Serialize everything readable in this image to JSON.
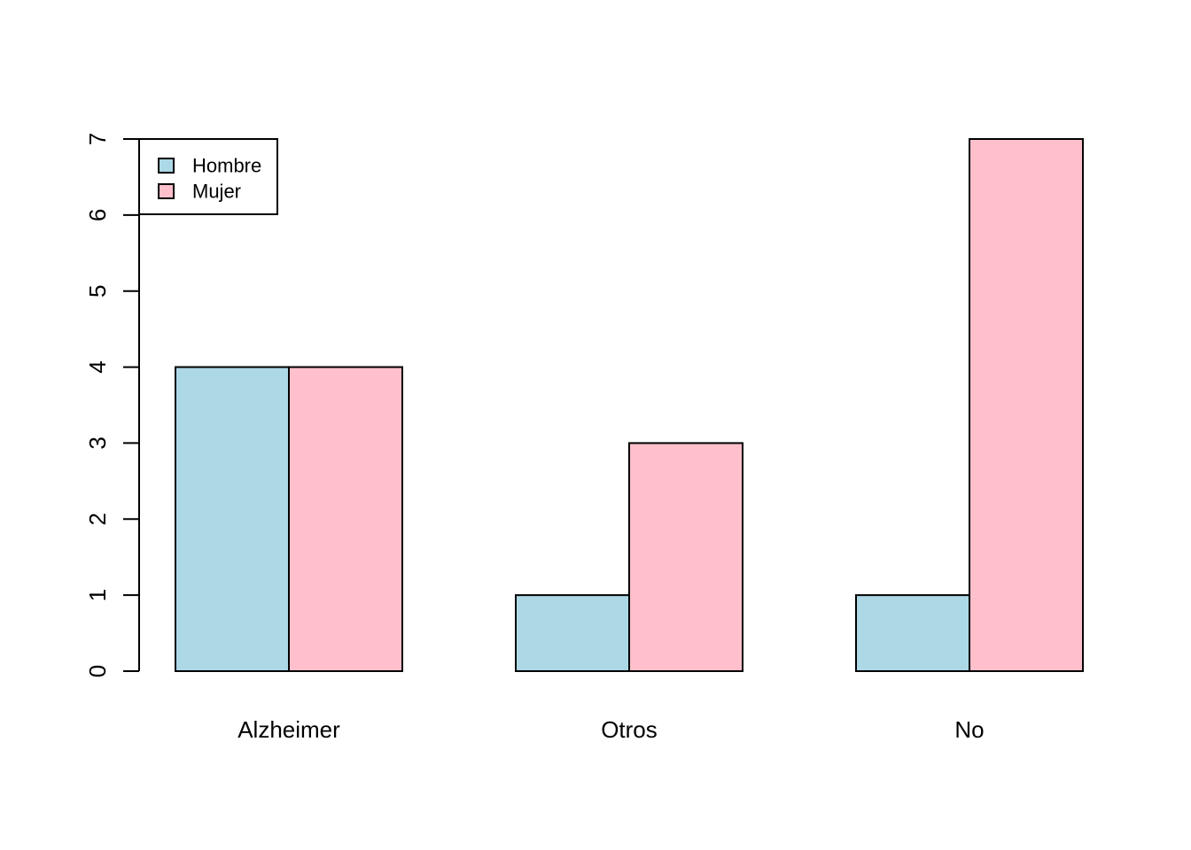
{
  "chart_data": {
    "type": "bar",
    "layout": "grouped",
    "categories": [
      "Alzheimer",
      "Otros",
      "No"
    ],
    "series": [
      {
        "name": "Hombre",
        "values": [
          4,
          1,
          1
        ],
        "color": "#ADD8E6"
      },
      {
        "name": "Mujer",
        "values": [
          4,
          3,
          7
        ],
        "color": "#FFC0CB"
      }
    ],
    "y_ticks": [
      "0",
      "1",
      "2",
      "3",
      "4",
      "5",
      "6",
      "7"
    ],
    "ylim": [
      0,
      7
    ],
    "grid": false,
    "legend_position": "top-left"
  }
}
